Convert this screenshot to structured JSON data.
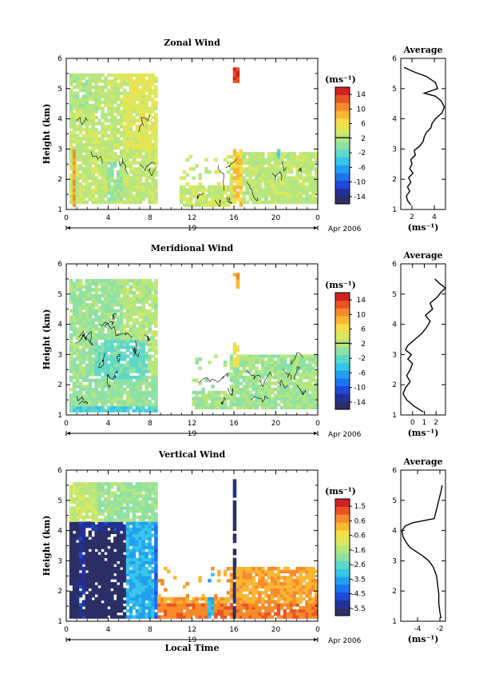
{
  "colors": {
    "scale": [
      "#2b2f66",
      "#22319a",
      "#1f49d8",
      "#1e74ee",
      "#22a0f0",
      "#36c6e8",
      "#5fd7c9",
      "#8ee0a5",
      "#b6e67f",
      "#dbe85f",
      "#f5de4a",
      "#fbb634",
      "#f78a2a",
      "#e85424",
      "#cf2222"
    ],
    "line": "#000000"
  },
  "chart_data": [
    {
      "id": "zonal",
      "type": "heatmap",
      "title": "Zonal Wind",
      "ylabel": "Height (km)",
      "xlabel": "",
      "x_ticks": [
        "0",
        "4",
        "8",
        "12",
        "16",
        "20",
        "0"
      ],
      "y_ticks": [
        "1",
        "2",
        "3",
        "4",
        "5",
        "6"
      ],
      "xlim": [
        0,
        24
      ],
      "ylim": [
        1,
        6
      ],
      "date_label": "19",
      "date_suffix": "Apr 2006",
      "unit": "(ms⁻¹)",
      "colorbar_range": [
        -15,
        15
      ],
      "colorbar_ticks": [
        "14",
        "10",
        "6",
        "2",
        "-2",
        "-6",
        "-10",
        "-14"
      ],
      "colorbar_marker": 2,
      "background_value": 2,
      "regions": [
        {
          "t": [
            0.3,
            8.5
          ],
          "h": [
            1.2,
            5.4
          ],
          "v": 2.5
        },
        {
          "t": [
            0.3,
            2.8
          ],
          "h": [
            4.3,
            5.4
          ],
          "v": 1.8
        },
        {
          "t": [
            3.6,
            5.2
          ],
          "h": [
            1.3,
            2.6
          ],
          "v": 0.6
        },
        {
          "t": [
            5.2,
            8.4
          ],
          "h": [
            3.0,
            4.8
          ],
          "v": 4.2
        },
        {
          "t": [
            5.8,
            8.2
          ],
          "h": [
            4.8,
            5.4
          ],
          "v": 4.5
        },
        {
          "t": [
            0.4,
            0.8
          ],
          "h": [
            1.1,
            3.0
          ],
          "v": 9.5
        },
        {
          "t": [
            10.8,
            16.0
          ],
          "h": [
            1.1,
            2.8
          ],
          "v": 3.0
        },
        {
          "t": [
            16.0,
            24.0
          ],
          "h": [
            1.2,
            2.9
          ],
          "v": 2.3
        },
        {
          "t": [
            15.8,
            16.6
          ],
          "h": [
            1.1,
            3.0
          ],
          "v": 6.5
        },
        {
          "t": [
            15.9,
            16.3
          ],
          "h": [
            5.1,
            5.6
          ],
          "v": 12.5
        },
        {
          "t": [
            20.1,
            20.4
          ],
          "h": [
            2.7,
            3.0
          ],
          "v": -3.5
        }
      ],
      "profile": {
        "title": "Average",
        "xlabel": "(ms⁻¹)",
        "xlim": [
          1,
          5
        ],
        "x_ticks": [
          "2",
          "4"
        ],
        "ylim": [
          1,
          6
        ],
        "y_ticks": [
          "1",
          "2",
          "3",
          "4",
          "5",
          "6"
        ],
        "x": [
          1.9,
          1.6,
          1.5,
          1.8,
          1.6,
          1.9,
          1.7,
          2.1,
          1.8,
          2.0,
          1.9,
          2.3,
          2.2,
          2.7,
          3.0,
          3.1,
          3.3,
          3.7,
          3.8,
          4.1,
          4.7,
          4.9,
          4.6,
          4.1,
          3.1,
          4.3,
          4.1,
          3.3,
          2.2,
          1.3
        ],
        "y": [
          1.15,
          1.3,
          1.45,
          1.6,
          1.75,
          1.9,
          2.05,
          2.2,
          2.35,
          2.5,
          2.65,
          2.8,
          2.95,
          3.1,
          3.25,
          3.4,
          3.55,
          3.7,
          3.85,
          4.0,
          4.2,
          4.4,
          4.6,
          4.75,
          4.85,
          5.0,
          5.2,
          5.4,
          5.55,
          5.7
        ]
      }
    },
    {
      "id": "meridional",
      "type": "heatmap",
      "title": "Meridional Wind",
      "ylabel": "Height (km)",
      "xlabel": "",
      "x_ticks": [
        "0",
        "4",
        "8",
        "12",
        "16",
        "20",
        "0"
      ],
      "y_ticks": [
        "1",
        "2",
        "3",
        "4",
        "5",
        "6"
      ],
      "xlim": [
        0,
        24
      ],
      "ylim": [
        1,
        6
      ],
      "date_label": "19",
      "date_suffix": "Apr 2006",
      "unit": "(ms⁻¹)",
      "colorbar_range": [
        -15,
        15
      ],
      "colorbar_ticks": [
        "14",
        "10",
        "6",
        "2",
        "-2",
        "-6",
        "-10",
        "-14"
      ],
      "colorbar_marker": 2,
      "background_value": 0.5,
      "regions": [
        {
          "t": [
            0.3,
            8.5
          ],
          "h": [
            1.1,
            5.4
          ],
          "v": 0.5
        },
        {
          "t": [
            5.2,
            8.4
          ],
          "h": [
            2.3,
            5.4
          ],
          "v": 2.0
        },
        {
          "t": [
            2.5,
            7.5
          ],
          "h": [
            2.2,
            3.5
          ],
          "v": -1.5
        },
        {
          "t": [
            0.5,
            8.4
          ],
          "h": [
            1.1,
            1.3
          ],
          "v": -2.8
        },
        {
          "t": [
            12.0,
            24.0
          ],
          "h": [
            1.2,
            3.0
          ],
          "v": 1.0
        },
        {
          "t": [
            15.8,
            16.5
          ],
          "h": [
            2.6,
            3.4
          ],
          "v": 5.5
        },
        {
          "t": [
            15.8,
            16.3
          ],
          "h": [
            5.1,
            5.6
          ],
          "v": 8.5
        }
      ],
      "profile": {
        "title": "Average",
        "xlabel": "(ms⁻¹)",
        "xlim": [
          -1,
          2.8
        ],
        "x_ticks": [
          "0",
          "1",
          "2"
        ],
        "ylim": [
          1,
          6
        ],
        "y_ticks": [
          "1",
          "2",
          "3",
          "4",
          "5",
          "6"
        ],
        "x": [
          0.9,
          0.1,
          -0.5,
          -0.8,
          -0.6,
          -0.2,
          -0.5,
          -0.2,
          0.0,
          -0.4,
          -0.1,
          -0.6,
          -0.4,
          0.2,
          0.8,
          1.2,
          1.5,
          1.1,
          1.7,
          1.5,
          2.1,
          2.4,
          2.8,
          2.3,
          1.9
        ],
        "y": [
          1.1,
          1.3,
          1.5,
          1.7,
          1.9,
          2.1,
          2.3,
          2.5,
          2.7,
          2.85,
          3.0,
          3.15,
          3.3,
          3.5,
          3.7,
          3.9,
          4.1,
          4.3,
          4.5,
          4.7,
          4.9,
          5.05,
          5.2,
          5.35,
          5.5
        ]
      }
    },
    {
      "id": "vertical",
      "type": "heatmap",
      "title": "Vertical Wind",
      "ylabel": "Height (km)",
      "xlabel": "Local Time",
      "x_ticks": [
        "0",
        "4",
        "8",
        "12",
        "16",
        "20",
        "0"
      ],
      "y_ticks": [
        "1",
        "2",
        "3",
        "4",
        "5",
        "6"
      ],
      "xlim": [
        0,
        24
      ],
      "ylim": [
        1,
        6
      ],
      "date_label": "19",
      "date_suffix": "Apr 2006",
      "unit": "(ms⁻¹)",
      "colorbar_range": [
        -6,
        2
      ],
      "colorbar_ticks": [
        "1.5",
        "0.6",
        "-0.6",
        "-1.6",
        "-2.6",
        "-3.5",
        "-4.5",
        "-5.5"
      ],
      "colorbar_marker": null,
      "background_value": -1.2,
      "regions": [
        {
          "t": [
            0.3,
            8.4
          ],
          "h": [
            1.1,
            5.5
          ],
          "v": -1.8
        },
        {
          "t": [
            0.3,
            8.4
          ],
          "h": [
            1.1,
            4.3
          ],
          "v": -4.2
        },
        {
          "t": [
            0.3,
            5.6
          ],
          "h": [
            1.1,
            4.3
          ],
          "v": -5.2
        },
        {
          "t": [
            1.8,
            5.4
          ],
          "h": [
            1.1,
            4.0
          ],
          "v": -6.0
        },
        {
          "t": [
            0.3,
            1.1
          ],
          "h": [
            1.1,
            4.3
          ],
          "v": -5.8
        },
        {
          "t": [
            5.6,
            8.2
          ],
          "h": [
            1.1,
            4.3
          ],
          "v": -3.3
        },
        {
          "t": [
            0.3,
            2.8
          ],
          "h": [
            4.3,
            5.5
          ],
          "v": -1.2
        },
        {
          "t": [
            8.4,
            24.0
          ],
          "h": [
            1.1,
            2.8
          ],
          "v": 0.3
        },
        {
          "t": [
            8.4,
            24.0
          ],
          "h": [
            1.1,
            1.6
          ],
          "v": 0.8
        },
        {
          "t": [
            13.5,
            14.0
          ],
          "h": [
            1.1,
            2.6
          ],
          "v": -3.2
        },
        {
          "t": [
            15.7,
            16.2
          ],
          "h": [
            1.1,
            5.6
          ],
          "v": -5.6
        }
      ],
      "profile": {
        "title": "Average",
        "xlabel": "(ms⁻¹)",
        "xlim": [
          -5.5,
          -1.5
        ],
        "x_ticks": [
          "-4",
          "-2"
        ],
        "ylim": [
          1,
          6
        ],
        "y_ticks": [
          "1",
          "2",
          "3",
          "4",
          "5",
          "6"
        ],
        "x": [
          -1.9,
          -2.0,
          -2.1,
          -2.1,
          -2.2,
          -2.3,
          -2.6,
          -3.0,
          -3.5,
          -4.1,
          -4.7,
          -5.0,
          -5.3,
          -5.4,
          -5.1,
          -4.5,
          -2.5,
          -2.3,
          -2.1,
          -1.9,
          -1.8
        ],
        "y": [
          1.1,
          1.3,
          1.6,
          1.9,
          2.2,
          2.5,
          2.8,
          3.0,
          3.15,
          3.3,
          3.45,
          3.6,
          3.8,
          4.0,
          4.15,
          4.25,
          4.4,
          4.7,
          5.0,
          5.3,
          5.5
        ]
      }
    }
  ]
}
